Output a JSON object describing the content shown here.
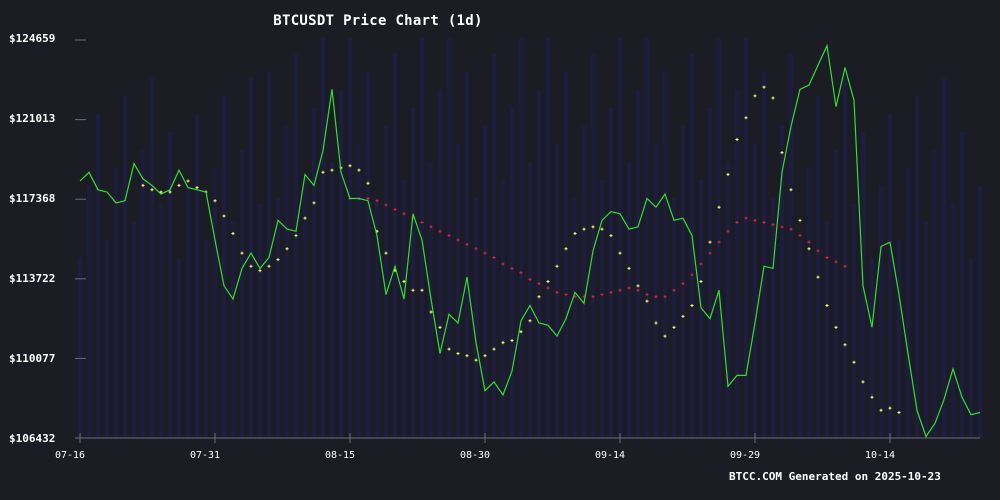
{
  "chart_data": {
    "type": "line",
    "title": "BTCUSDT Price Chart (1d)",
    "xlabel": "",
    "ylabel": "",
    "ylim": [
      106432,
      124659
    ],
    "yticks": [
      "$124659",
      "$121013",
      "$117368",
      "$113722",
      "$110077",
      "$106432"
    ],
    "ytick_values": [
      124659,
      121013,
      117368,
      113722,
      110077,
      106432
    ],
    "xticks": [
      "07-16",
      "07-31",
      "08-15",
      "08-30",
      "09-14",
      "09-29",
      "10-14"
    ],
    "x_start": "07-16",
    "x_end": "10-23",
    "grid": false,
    "legend": null,
    "series": [
      {
        "name": "Close",
        "style": "line",
        "color": "#33dd33",
        "values": [
          118200,
          118600,
          117800,
          117700,
          117200,
          117300,
          119000,
          118300,
          118000,
          117600,
          117800,
          118700,
          117900,
          117800,
          117700,
          115500,
          113400,
          112800,
          114200,
          114900,
          114200,
          114700,
          116400,
          116000,
          115900,
          118500,
          118000,
          119600,
          122400,
          118600,
          117400,
          117400,
          117300,
          115700,
          113000,
          114300,
          112800,
          116700,
          115500,
          112800,
          110300,
          112100,
          111700,
          113800,
          110800,
          108600,
          109000,
          108400,
          109500,
          111800,
          112500,
          111700,
          111600,
          111100,
          111900,
          113100,
          112600,
          115000,
          116400,
          116800,
          116700,
          116000,
          116100,
          117400,
          117000,
          117600,
          116400,
          116500,
          115700,
          112400,
          111900,
          113200,
          108800,
          109300,
          109300,
          111700,
          114300,
          114200,
          118600,
          120700,
          122400,
          122600,
          123500,
          124400,
          121600,
          123400,
          121900,
          113400,
          111500,
          115200,
          115400,
          113000,
          110300,
          107700,
          106500,
          107100,
          108200,
          109600,
          108300,
          107500,
          107600
        ]
      },
      {
        "name": "MA (short)",
        "style": "dots",
        "color": "#ffff66",
        "start_index": 7,
        "values": [
          118000,
          117800,
          117700,
          117700,
          118000,
          118200,
          117900,
          117700,
          117300,
          116600,
          115800,
          114900,
          114300,
          114100,
          114300,
          114600,
          115100,
          115700,
          116500,
          117200,
          118600,
          118700,
          118800,
          118900,
          118700,
          118100,
          115900,
          114900,
          114100,
          113600,
          113200,
          113200,
          112200,
          111500,
          110500,
          110300,
          110200,
          110000,
          110200,
          110500,
          110800,
          110900,
          111300,
          111800,
          112900,
          113600,
          114300,
          115100,
          115800,
          116000,
          116100,
          116000,
          115700,
          114900,
          114200,
          113400,
          112700,
          111700,
          111100,
          111500,
          112000,
          112500,
          113600,
          115400,
          117000,
          118500,
          120100,
          121100,
          122100,
          122500,
          122000,
          119500,
          117800,
          116400,
          115100,
          113800,
          112500,
          111500,
          110700,
          109900,
          109000,
          108300,
          107700,
          107800,
          107600
        ]
      },
      {
        "name": "MA (long)",
        "style": "dots",
        "color": "#dd2244",
        "start_index": 30,
        "values": [
          117400,
          117400,
          117400,
          117300,
          117100,
          116900,
          116700,
          116500,
          116300,
          116100,
          115900,
          115700,
          115500,
          115300,
          115100,
          114900,
          114700,
          114400,
          114200,
          114000,
          113700,
          113500,
          113300,
          113100,
          113000,
          112900,
          112900,
          112900,
          113000,
          113100,
          113200,
          113300,
          113200,
          113000,
          112900,
          112900,
          113200,
          113500,
          113900,
          114400,
          114900,
          115400,
          115900,
          116300,
          116500,
          116400,
          116300,
          116200,
          116100,
          116000,
          115700,
          115400,
          115000,
          114700,
          114500,
          114300
        ]
      }
    ],
    "annotations": [
      "BTCC.COM Generated on 2025-10-23"
    ]
  },
  "chart": {
    "title": "BTCUSDT Price Chart (1d)",
    "y_labels": [
      "$124659",
      "$121013",
      "$117368",
      "$113722",
      "$110077",
      "$106432"
    ],
    "x_labels": [
      "07-16",
      "07-31",
      "08-15",
      "08-30",
      "09-14",
      "09-29",
      "10-14"
    ],
    "footer": "BTCC.COM Generated on 2025-10-23",
    "colors": {
      "background": "#1b1c24",
      "price_line": "#33dd33",
      "short_ma": "#ffff66",
      "long_ma": "#dd2244",
      "axis": "#6b6d78",
      "volume_stripes": "#1e1f5a"
    }
  }
}
